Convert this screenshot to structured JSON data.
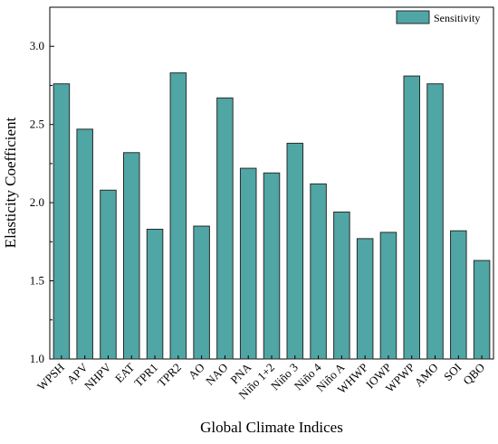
{
  "chart_data": {
    "type": "bar",
    "categories": [
      "WPSH",
      "APV",
      "NHPV",
      "EAT",
      "TPR1",
      "TPR2",
      "AO",
      "NAO",
      "PNA",
      "Niño 1+2",
      "Niño 3",
      "Niño 4",
      "Niño A",
      "WHWP",
      "IOWP",
      "WPWP",
      "AMO",
      "SOI",
      "QBO"
    ],
    "series": [
      {
        "name": "Sensitivity",
        "values": [
          2.76,
          2.47,
          2.08,
          2.32,
          1.83,
          2.83,
          1.85,
          2.67,
          2.22,
          2.19,
          2.38,
          2.12,
          1.94,
          1.77,
          1.81,
          2.81,
          2.76,
          1.82,
          1.63
        ]
      }
    ],
    "xlabel": "Global Climate Indices",
    "ylabel": "Elasticity Coefficient",
    "ylim": [
      1.0,
      3.25
    ],
    "yticks": [
      "1.0",
      "1.5",
      "2.0",
      "2.5",
      "3.0"
    ],
    "grid": false,
    "legend": "top-right",
    "colors": {
      "bar_fill": "#4fa6a4",
      "bar_stroke": "#2a2a2a",
      "axis": "#000000"
    }
  }
}
